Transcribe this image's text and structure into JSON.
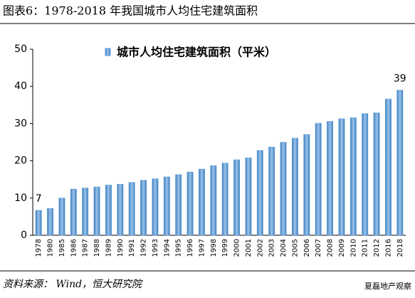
{
  "chart_data": {
    "type": "bar",
    "title": "图表6：1978-2018 年我国城市人均住宅建筑面积",
    "categories": [
      "1978",
      "1980",
      "1985",
      "1986",
      "1987",
      "1988",
      "1989",
      "1990",
      "1991",
      "1992",
      "1993",
      "1994",
      "1995",
      "1996",
      "1997",
      "1998",
      "1999",
      "2000",
      "2001",
      "2002",
      "2003",
      "2004",
      "2005",
      "2006",
      "2007",
      "2008",
      "2009",
      "2010",
      "2011",
      "2012",
      "2016",
      "2018"
    ],
    "series": [
      {
        "name": "城市人均住宅建筑面积（平米）",
        "color": "#5b9bd5",
        "values": [
          6.7,
          7.2,
          10.0,
          12.4,
          12.7,
          13.0,
          13.5,
          13.7,
          14.2,
          14.8,
          15.2,
          15.7,
          16.3,
          17.0,
          17.8,
          18.7,
          19.4,
          20.3,
          20.8,
          22.8,
          23.7,
          25.0,
          26.1,
          27.1,
          30.1,
          30.6,
          31.3,
          31.6,
          32.7,
          32.9,
          36.6,
          39.0
        ],
        "value_labels": [
          "7",
          null,
          null,
          null,
          null,
          null,
          null,
          null,
          null,
          null,
          null,
          null,
          null,
          null,
          null,
          null,
          null,
          null,
          null,
          null,
          null,
          null,
          null,
          null,
          null,
          null,
          null,
          null,
          null,
          null,
          null,
          "39"
        ]
      }
    ],
    "ylim": [
      0,
      50
    ],
    "yticks": [
      0,
      10,
      20,
      30,
      40,
      50
    ],
    "grid": false,
    "legend": "top"
  },
  "source": "资料来源： Wind，恒大研究院",
  "watermark": "夏磊地产观察"
}
